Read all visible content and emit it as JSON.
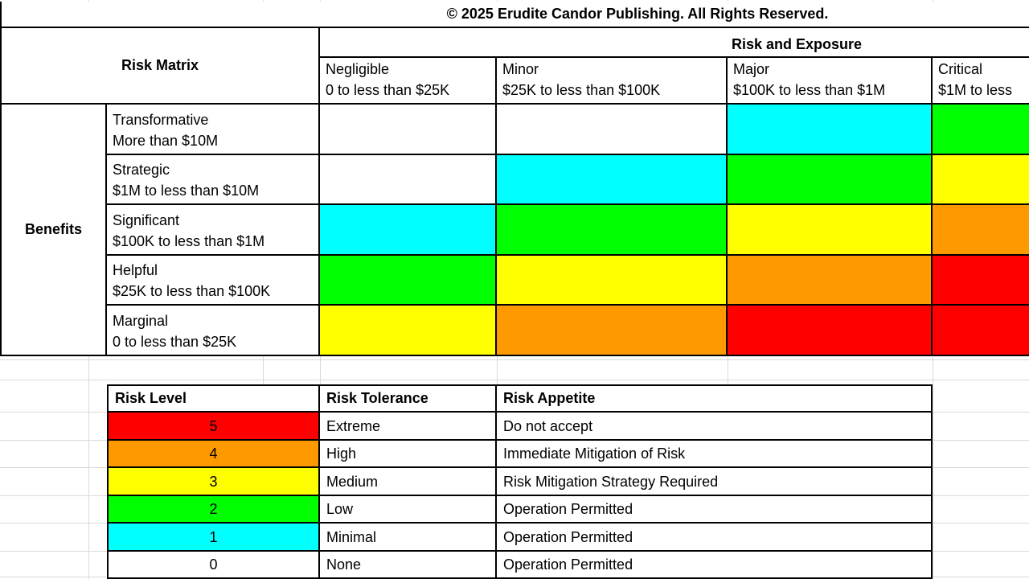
{
  "title": "© 2025 Erudite Candor Publishing. All Rights Reserved.",
  "matrix": {
    "corner_label": "Risk Matrix",
    "exposure_header": "Risk and Exposure",
    "benefits_label": "Benefits",
    "columns": [
      {
        "name": "Negligible",
        "range": "0 to less than $25K"
      },
      {
        "name": "Minor",
        "range": "$25K to less than $100K"
      },
      {
        "name": "Major",
        "range": "$100K to less than $1M"
      },
      {
        "name": "Critical",
        "range": "$1M to less"
      }
    ],
    "rows": [
      {
        "name": "Transformative",
        "range": "More than $10M",
        "cells": [
          "white",
          "white",
          "cyan",
          "green"
        ]
      },
      {
        "name": "Strategic",
        "range": "$1M to less than $10M",
        "cells": [
          "white",
          "cyan",
          "green",
          "yellow"
        ]
      },
      {
        "name": "Significant",
        "range": "$100K to less than $1M",
        "cells": [
          "cyan",
          "green",
          "yellow",
          "orange"
        ]
      },
      {
        "name": "Helpful",
        "range": "$25K to less than $100K",
        "cells": [
          "green",
          "yellow",
          "orange",
          "red"
        ]
      },
      {
        "name": "Marginal",
        "range": "0 to less than $25K",
        "cells": [
          "yellow",
          "orange",
          "red",
          "red"
        ]
      }
    ]
  },
  "legend": {
    "headers": [
      "Risk Level",
      "Risk Tolerance",
      "Risk Appetite"
    ],
    "rows": [
      {
        "level": "5",
        "color": "red",
        "tolerance": "Extreme",
        "appetite": "Do not accept"
      },
      {
        "level": "4",
        "color": "orange",
        "tolerance": "High",
        "appetite": "Immediate Mitigation of Risk"
      },
      {
        "level": "3",
        "color": "yellow",
        "tolerance": "Medium",
        "appetite": "Risk Mitigation Strategy Required"
      },
      {
        "level": "2",
        "color": "green",
        "tolerance": "Low",
        "appetite": "Operation Permitted"
      },
      {
        "level": "1",
        "color": "cyan",
        "tolerance": "Minimal",
        "appetite": "Operation Permitted"
      },
      {
        "level": "0",
        "color": "white",
        "tolerance": "None",
        "appetite": "Operation Permitted"
      }
    ]
  },
  "colors": {
    "white": "#ffffff",
    "cyan": "#00ffff",
    "green": "#00ff00",
    "yellow": "#ffff00",
    "orange": "#ff9900",
    "red": "#ff0000",
    "border": "#000000",
    "gridline": "#d9d9d9"
  }
}
